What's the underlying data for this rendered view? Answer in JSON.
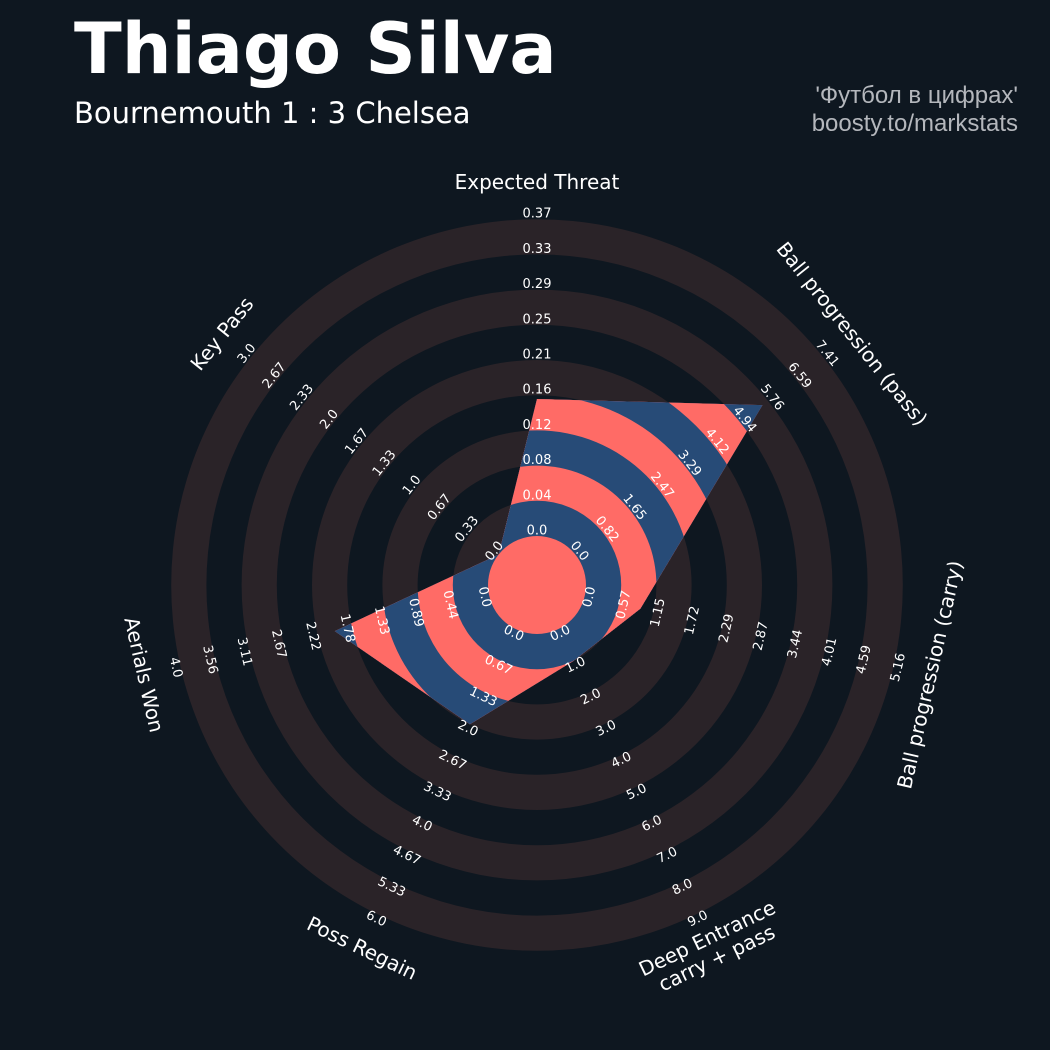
{
  "header": {
    "title": "Thiago Silva",
    "subtitle": "Bournemouth 1 : 3 Chelsea",
    "credit_line1": "'Футбол в цифрах'",
    "credit_line2": "boosty.to/markstats"
  },
  "colors": {
    "background": "#0e1720",
    "ring": "#2a2328",
    "fill_primary": "#ff6b66",
    "fill_secondary": "#274b77",
    "text": "#ffffff"
  },
  "chart_data": {
    "type": "radar",
    "params": [
      {
        "label": [
          "Expected Threat"
        ],
        "min": 0.0,
        "max": 0.37,
        "value": 0.16,
        "ticks": [
          "0.0",
          "0.04",
          "0.08",
          "0.12",
          "0.16",
          "0.21",
          "0.25",
          "0.29",
          "0.33",
          "0.37"
        ]
      },
      {
        "label": [
          "Ball progression (pass)"
        ],
        "min": 0.0,
        "max": 7.41,
        "value": 5.6,
        "ticks": [
          "0.0",
          "0.82",
          "1.65",
          "2.47",
          "3.29",
          "4.12",
          "4.94",
          "5.76",
          "6.59",
          "7.41"
        ]
      },
      {
        "label": [
          "Ball progression (carry)"
        ],
        "min": 0.0,
        "max": 5.16,
        "value": 0.93,
        "ticks": [
          "0.0",
          "0.57",
          "1.15",
          "1.72",
          "2.29",
          "2.87",
          "3.44",
          "4.01",
          "4.59",
          "5.16"
        ]
      },
      {
        "label": [
          "Deep Entrance",
          "carry + pass"
        ],
        "min": 0.0,
        "max": 9.0,
        "value": 1.0,
        "ticks": [
          "0.0",
          "1.0",
          "2.0",
          "3.0",
          "4.0",
          "5.0",
          "6.0",
          "7.0",
          "8.0",
          "9.0"
        ]
      },
      {
        "label": [
          "Poss Regain"
        ],
        "min": 0.0,
        "max": 6.0,
        "value": 2.0,
        "ticks": [
          "0.0",
          "0.67",
          "1.33",
          "2.0",
          "2.67",
          "3.33",
          "4.0",
          "4.67",
          "5.33",
          "6.0"
        ]
      },
      {
        "label": [
          "Aerials Won"
        ],
        "min": 0.0,
        "max": 4.0,
        "value": 2.0,
        "ticks": [
          "0.0",
          "0.44",
          "0.89",
          "1.33",
          "1.78",
          "2.22",
          "2.67",
          "3.11",
          "3.56",
          "4.0"
        ]
      },
      {
        "label": [
          "Key Pass"
        ],
        "min": 0.0,
        "max": 3.0,
        "value": 0.0,
        "ticks": [
          "0.0",
          "0.33",
          "0.67",
          "1.0",
          "1.33",
          "1.67",
          "2.0",
          "2.33",
          "2.67",
          "3.0"
        ]
      }
    ]
  }
}
